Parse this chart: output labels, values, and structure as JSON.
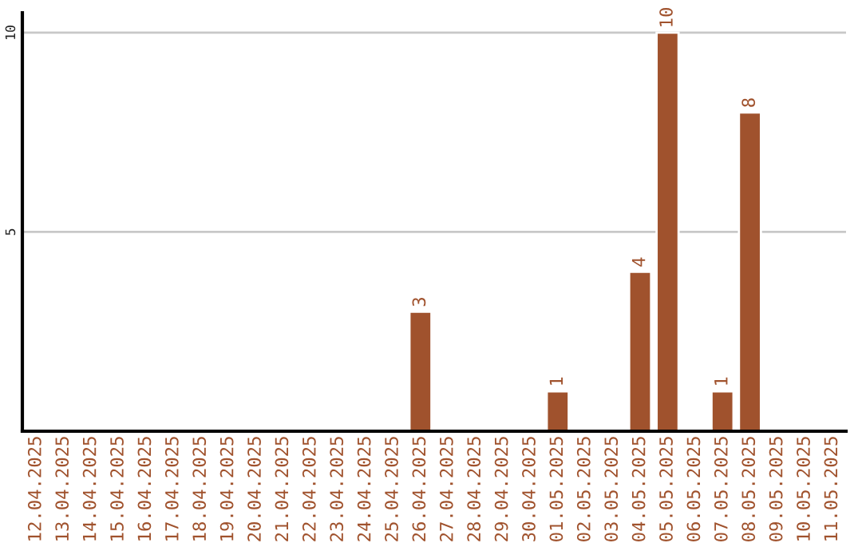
{
  "chart_data": {
    "type": "bar",
    "categories": [
      "12.04.2025",
      "13.04.2025",
      "14.04.2025",
      "15.04.2025",
      "16.04.2025",
      "17.04.2025",
      "18.04.2025",
      "19.04.2025",
      "20.04.2025",
      "21.04.2025",
      "22.04.2025",
      "23.04.2025",
      "24.04.2025",
      "25.04.2025",
      "26.04.2025",
      "27.04.2025",
      "28.04.2025",
      "29.04.2025",
      "30.04.2025",
      "01.05.2025",
      "02.05.2025",
      "03.05.2025",
      "04.05.2025",
      "05.05.2025",
      "06.05.2025",
      "07.05.2025",
      "08.05.2025",
      "09.05.2025",
      "10.05.2025",
      "11.05.2025"
    ],
    "values": [
      null,
      null,
      null,
      null,
      null,
      null,
      null,
      null,
      null,
      null,
      null,
      null,
      null,
      null,
      3,
      null,
      null,
      null,
      null,
      1,
      null,
      null,
      4,
      10,
      null,
      1,
      8,
      null,
      null,
      null
    ],
    "value_labels": [
      null,
      null,
      null,
      null,
      null,
      null,
      null,
      null,
      null,
      null,
      null,
      null,
      null,
      null,
      "3",
      null,
      null,
      null,
      null,
      "1",
      null,
      null,
      "4",
      "10",
      null,
      "1",
      "8",
      null,
      null,
      null
    ],
    "color": "#a0522d",
    "ylim": [
      0,
      10.5
    ],
    "yticks": [
      5,
      10
    ],
    "grid": "y",
    "legend": false
  }
}
